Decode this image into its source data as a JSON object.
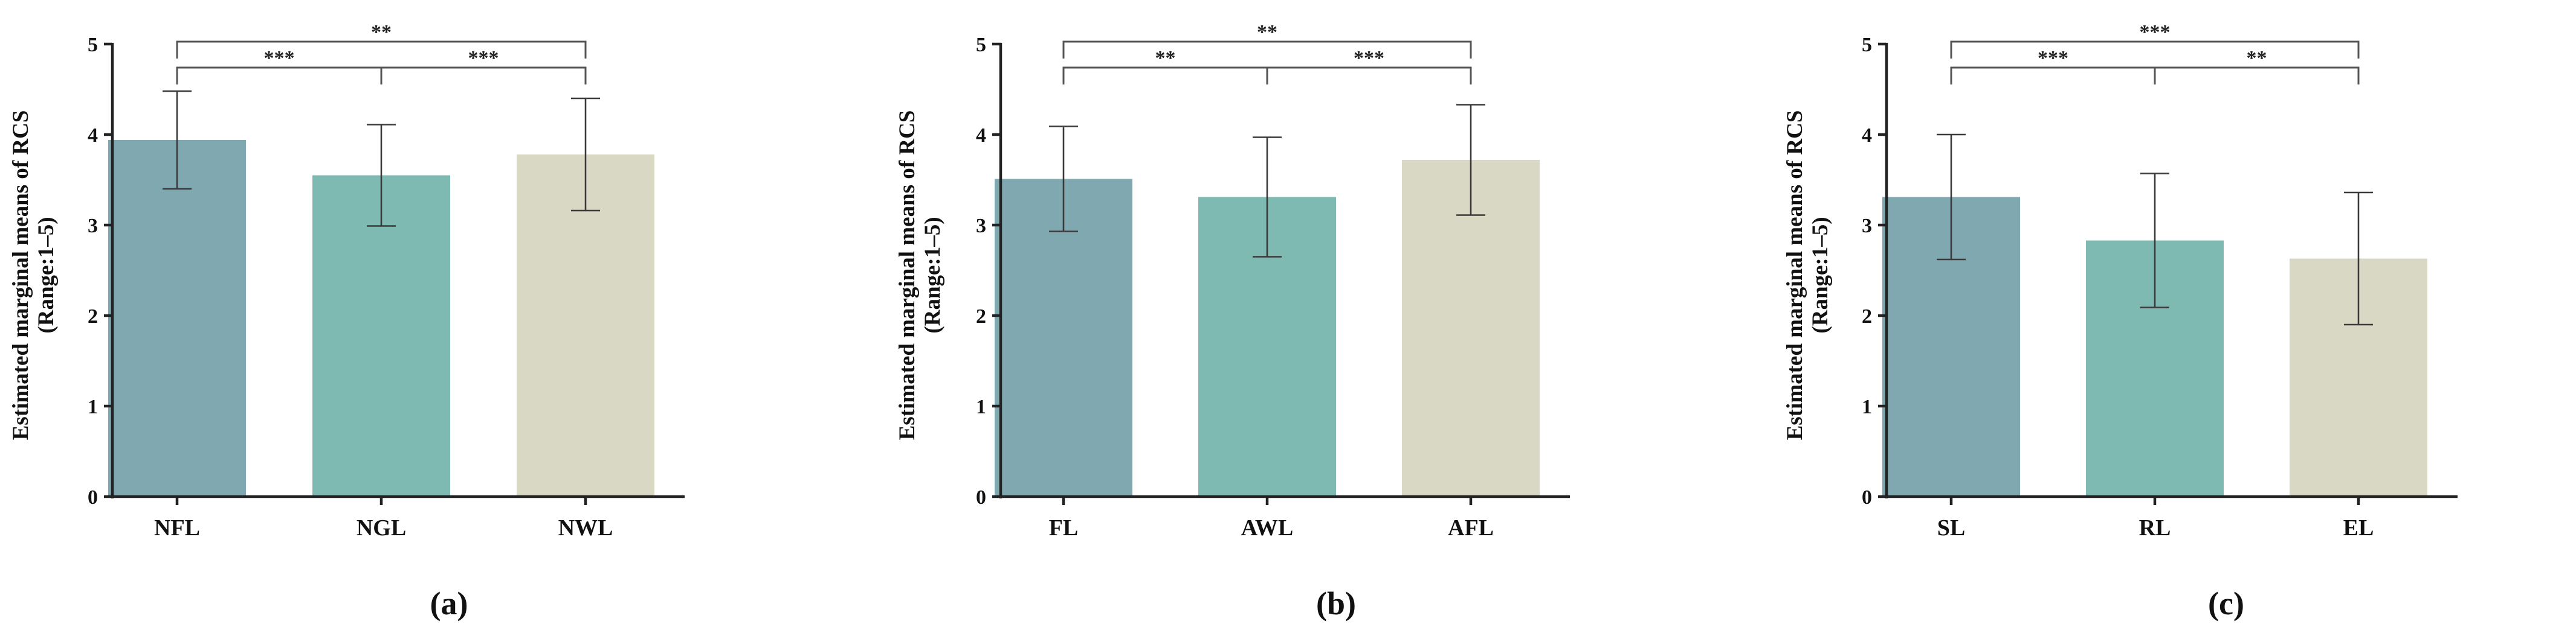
{
  "chart_data": [
    {
      "type": "bar",
      "panel_label": "(a)",
      "ylabel_line1": "Estimated marginal means of RCS",
      "ylabel_line2": "(Range:1–5)",
      "xlabel": "",
      "ylim": [
        0,
        5
      ],
      "yticks": [
        0,
        1,
        2,
        3,
        4,
        5
      ],
      "categories": [
        "NFL",
        "NGL",
        "NWL"
      ],
      "values": [
        3.94,
        3.55,
        3.78
      ],
      "error": [
        0.54,
        0.56,
        0.62
      ],
      "colors": [
        "#7fa8b1",
        "#7ebab2",
        "#d8d8c5"
      ],
      "significance": [
        {
          "from": 0,
          "to": 1,
          "label": "***",
          "level": 1
        },
        {
          "from": 1,
          "to": 2,
          "label": "***",
          "level": 1
        },
        {
          "from": 0,
          "to": 2,
          "label": "**",
          "level": 2
        }
      ]
    },
    {
      "type": "bar",
      "panel_label": "(b)",
      "ylabel_line1": "Estimated marginal means of RCS",
      "ylabel_line2": "(Range:1–5)",
      "xlabel": "",
      "ylim": [
        0,
        5
      ],
      "yticks": [
        0,
        1,
        2,
        3,
        4,
        5
      ],
      "categories": [
        "FL",
        "AWL",
        "AFL"
      ],
      "values": [
        3.51,
        3.31,
        3.72
      ],
      "error": [
        0.58,
        0.66,
        0.61
      ],
      "colors": [
        "#7fa8b1",
        "#7ebab2",
        "#d8d8c5"
      ],
      "significance": [
        {
          "from": 0,
          "to": 1,
          "label": "**",
          "level": 1
        },
        {
          "from": 1,
          "to": 2,
          "label": "***",
          "level": 1
        },
        {
          "from": 0,
          "to": 2,
          "label": "**",
          "level": 2
        }
      ]
    },
    {
      "type": "bar",
      "panel_label": "(c)",
      "ylabel_line1": "Estimated marginal means of RCS",
      "ylabel_line2": "(Range:1–5)",
      "xlabel": "",
      "ylim": [
        0,
        5
      ],
      "yticks": [
        0,
        1,
        2,
        3,
        4,
        5
      ],
      "categories": [
        "SL",
        "RL",
        "EL"
      ],
      "values": [
        3.31,
        2.83,
        2.63
      ],
      "error": [
        0.69,
        0.74,
        0.73
      ],
      "colors": [
        "#7fa8b1",
        "#7ebab2",
        "#d8d8c5"
      ],
      "significance": [
        {
          "from": 0,
          "to": 1,
          "label": "***",
          "level": 1
        },
        {
          "from": 1,
          "to": 2,
          "label": "**",
          "level": 1
        },
        {
          "from": 0,
          "to": 2,
          "label": "***",
          "level": 2
        }
      ]
    }
  ]
}
